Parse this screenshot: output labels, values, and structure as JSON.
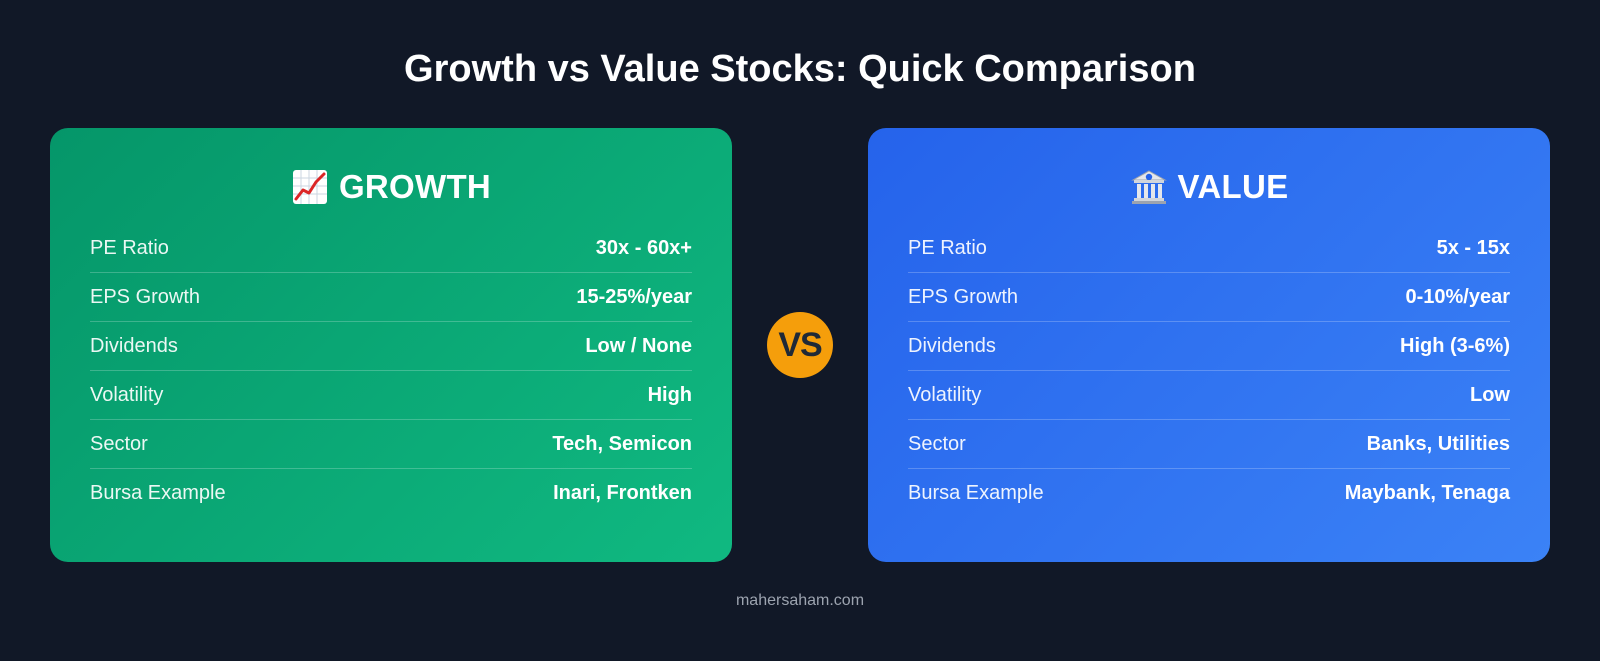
{
  "title": "Growth vs Value Stocks: Quick Comparison",
  "vs_label": "VS",
  "footer": "mahersaham.com",
  "colors": {
    "background": "#111827",
    "growth_accent": "#10b981",
    "value_accent": "#3b82f6",
    "vs_badge": "#f59e0b"
  },
  "growth": {
    "icon": "chart-increasing-icon",
    "title": "GROWTH",
    "rows": [
      {
        "label": "PE Ratio",
        "value": "30x - 60x+"
      },
      {
        "label": "EPS Growth",
        "value": "15-25%/year"
      },
      {
        "label": "Dividends",
        "value": "Low / None"
      },
      {
        "label": "Volatility",
        "value": "High"
      },
      {
        "label": "Sector",
        "value": "Tech, Semicon"
      },
      {
        "label": "Bursa Example",
        "value": "Inari, Frontken"
      }
    ]
  },
  "value": {
    "icon": "bank-icon",
    "title": "VALUE",
    "rows": [
      {
        "label": "PE Ratio",
        "value": "5x - 15x"
      },
      {
        "label": "EPS Growth",
        "value": "0-10%/year"
      },
      {
        "label": "Dividends",
        "value": "High (3-6%)"
      },
      {
        "label": "Volatility",
        "value": "Low"
      },
      {
        "label": "Sector",
        "value": "Banks, Utilities"
      },
      {
        "label": "Bursa Example",
        "value": "Maybank, Tenaga"
      }
    ]
  }
}
